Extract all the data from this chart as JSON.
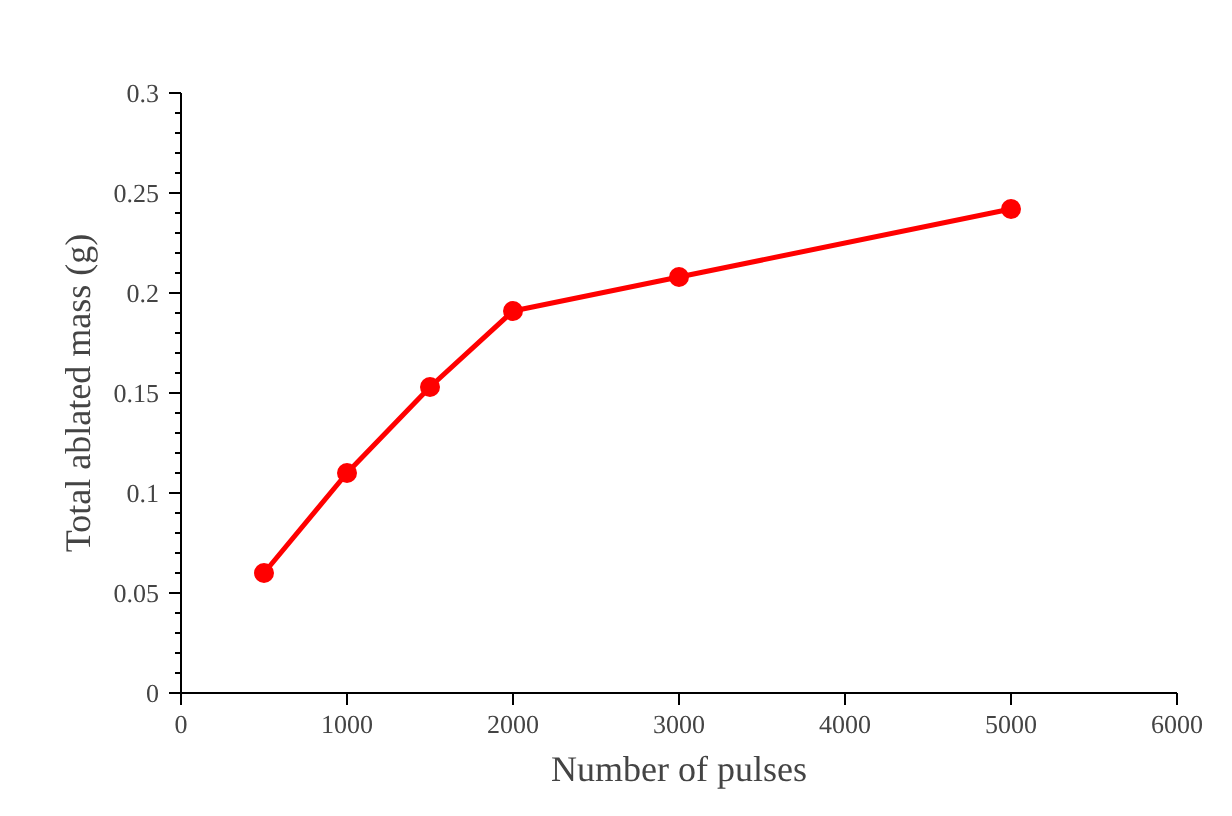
{
  "chart_data": {
    "type": "line",
    "xlabel": "Number of pulses",
    "ylabel": "Total ablated mass (g)",
    "x": [
      500,
      1000,
      1500,
      2000,
      3000,
      5000
    ],
    "series": [
      {
        "color": "#ff0000",
        "values": [
          0.06,
          0.11,
          0.153,
          0.191,
          0.208,
          0.242
        ]
      }
    ],
    "xlim": [
      0,
      6000
    ],
    "xticks": [
      0,
      1000,
      2000,
      3000,
      4000,
      5000,
      6000
    ],
    "ylim": [
      0,
      0.3
    ],
    "yticks": [
      0,
      0.05,
      0.1,
      0.15,
      0.2,
      0.25,
      0.3
    ],
    "grid": false,
    "marker": "circle",
    "line_style": "solid"
  }
}
